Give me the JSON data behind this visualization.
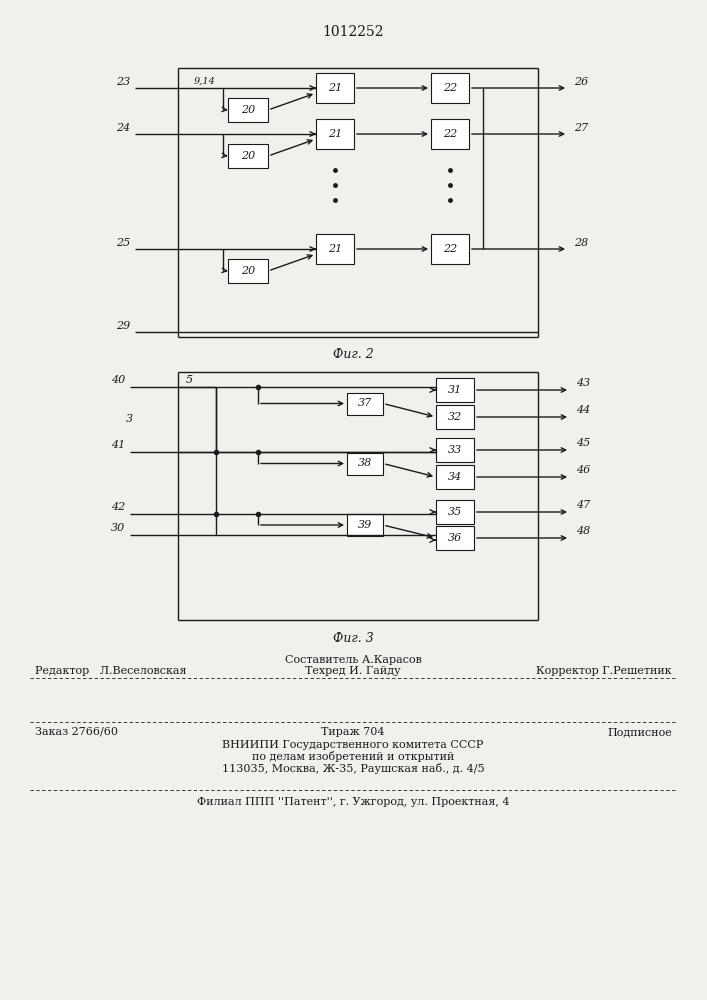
{
  "title": "1012252",
  "fig2_caption": "Фиг. 2",
  "fig3_caption": "Фиг. 3",
  "bg_color": "#f0f0ec",
  "line_color": "#1a1a1a",
  "box_color": "#ffffff",
  "footer": {
    "composer": "Составитель А.Карасов",
    "editor": "Редактор   Л.Веселовская",
    "tech": "Техред И. Гайду",
    "corrector": "Корректор Г.Решетник",
    "order": "Заказ 2766/60",
    "circulation": "Тираж 704",
    "subscription": "Подписное",
    "institute1": "ВНИИПИ Государственного комитета СССР",
    "institute2": "по делам изобретений и открытий",
    "address": "113035, Москва, Ж-35, Раушская наб., д. 4/5",
    "branch": "Филиал ППП ''Патент'', г. Ужгород, ул. Проектная, 4"
  }
}
